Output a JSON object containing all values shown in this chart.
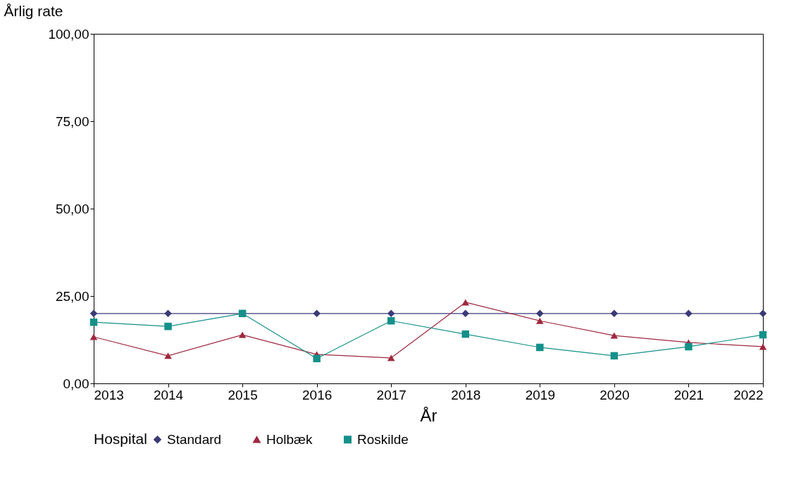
{
  "chart_data": {
    "type": "line",
    "xlabel": "År",
    "ylabel": "Årlig rate",
    "legend_title": "Hospital",
    "x": [
      2013,
      2014,
      2015,
      2016,
      2017,
      2018,
      2019,
      2020,
      2021,
      2022
    ],
    "series": [
      {
        "name": "Standard",
        "color": "#3b3a78",
        "marker": "diamond",
        "values": [
          20,
          20,
          20,
          20,
          20,
          20,
          20,
          20,
          20,
          20
        ]
      },
      {
        "name": "Holbæk",
        "color": "#a0283f",
        "marker": "triangle",
        "values": [
          13.3,
          7.9,
          13.9,
          8.3,
          7.3,
          23.2,
          17.9,
          13.7,
          11.7,
          10.5
        ]
      },
      {
        "name": "Roskilde",
        "color": "#14908a",
        "marker": "square",
        "values": [
          17.5,
          16.3,
          20,
          7.1,
          17.9,
          14.1,
          10.3,
          7.9,
          10.5,
          13.9
        ]
      }
    ],
    "xlim": [
      2013,
      2022
    ],
    "xticks": [
      2013,
      2014,
      2015,
      2016,
      2017,
      2018,
      2019,
      2020,
      2021,
      2022
    ],
    "ylim": [
      0,
      100
    ],
    "yticks": [
      {
        "value": 0,
        "label": "0,00"
      },
      {
        "value": 25,
        "label": "25,00"
      },
      {
        "value": 50,
        "label": "50,00"
      },
      {
        "value": 75,
        "label": "75,00"
      },
      {
        "value": 100,
        "label": "100,00"
      }
    ],
    "grid": false,
    "legend": "bottom"
  }
}
